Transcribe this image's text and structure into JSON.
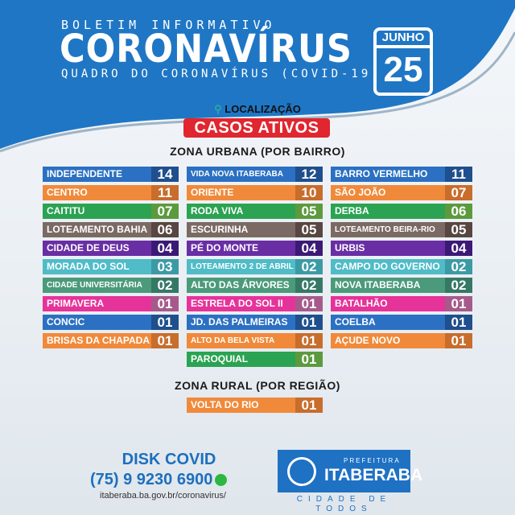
{
  "header": {
    "kicker": "BOLETIM INFORMATIVO",
    "title": "CORONAVÍRUS",
    "subtitle": "QUADRO DO CORONAVÍRUS (COVID-19)",
    "month": "JUNHO",
    "day": "25"
  },
  "location_label": "LOCALIZAÇÃO",
  "active_label": "CASOS ATIVOS",
  "urban_title": "ZONA URBANA (POR BAIRRO)",
  "rural_title": "ZONA RURAL (POR REGIÃO)",
  "row_colors": [
    [
      "#2b70c2",
      "#1f4f8c"
    ],
    [
      "#f08a3a",
      "#c86d2c"
    ],
    [
      "#2ba352",
      "#5c9a3e"
    ],
    [
      "#7b6a64",
      "#574641"
    ],
    [
      "#6a2ea4",
      "#3d1976"
    ],
    [
      "#4fbcc8",
      "#3c9aa5"
    ],
    [
      "#4b9a7b",
      "#367866"
    ],
    [
      "#e6339a",
      "#a65a8b"
    ],
    [
      "#2b70c2",
      "#1f4f8c"
    ],
    [
      "#f08a3a",
      "#c86d2c"
    ],
    [
      "#2ba352",
      "#5c9a3e"
    ]
  ],
  "urban": [
    [
      {
        "name": "INDEPENDENTE",
        "value": "14"
      },
      {
        "name": "VIDA NOVA ITABERABA",
        "value": "12"
      },
      {
        "name": "BARRO VERMELHO",
        "value": "11"
      }
    ],
    [
      {
        "name": "CENTRO",
        "value": "11"
      },
      {
        "name": "ORIENTE",
        "value": "10"
      },
      {
        "name": "SÃO JOÃO",
        "value": "07"
      }
    ],
    [
      {
        "name": "CAITITU",
        "value": "07"
      },
      {
        "name": "RODA VIVA",
        "value": "05"
      },
      {
        "name": "DERBA",
        "value": "06"
      }
    ],
    [
      {
        "name": "LOTEAMENTO BAHIA",
        "value": "06"
      },
      {
        "name": "ESCURINHA",
        "value": "05"
      },
      {
        "name": "LOTEAMENTO BEIRA-RIO",
        "value": "05"
      }
    ],
    [
      {
        "name": "CIDADE DE DEUS",
        "value": "04"
      },
      {
        "name": "PÉ DO MONTE",
        "value": "04"
      },
      {
        "name": "URBIS",
        "value": "04"
      }
    ],
    [
      {
        "name": "MORADA DO SOL",
        "value": "03"
      },
      {
        "name": "LOTEAMENTO 2 DE ABRIL",
        "value": "02"
      },
      {
        "name": "CAMPO DO GOVERNO",
        "value": "02"
      }
    ],
    [
      {
        "name": "CIDADE UNIVERSITÁRIA",
        "value": "02"
      },
      {
        "name": "ALTO DAS ÁRVORES",
        "value": "02"
      },
      {
        "name": "NOVA ITABERABA",
        "value": "02"
      }
    ],
    [
      {
        "name": "PRIMAVERA",
        "value": "01"
      },
      {
        "name": "ESTRELA DO SOL II",
        "value": "01"
      },
      {
        "name": "BATALHÃO",
        "value": "01"
      }
    ],
    [
      {
        "name": "CONCIC",
        "value": "01"
      },
      {
        "name": "JD. DAS PALMEIRAS",
        "value": "01"
      },
      {
        "name": "COELBA",
        "value": "01"
      }
    ],
    [
      {
        "name": "BRISAS DA CHAPADA",
        "value": "01"
      },
      {
        "name": "ALTO DA BELA VISTA",
        "value": "01"
      },
      {
        "name": "AÇUDE NOVO",
        "value": "01"
      }
    ],
    [
      null,
      {
        "name": "PAROQUIAL",
        "value": "01"
      },
      null
    ]
  ],
  "rural": [
    {
      "name": "VOLTA DO RIO",
      "value": "01"
    }
  ],
  "footer": {
    "disk": "DISK COVID",
    "phone": "(75) 9 9230 6900",
    "url": "itaberaba.ba.gov.br/coronavirus/",
    "logo_top": "PREFEITURA",
    "logo_name": "ITABERABA",
    "slogan": "CIDADE DE TODOS"
  }
}
